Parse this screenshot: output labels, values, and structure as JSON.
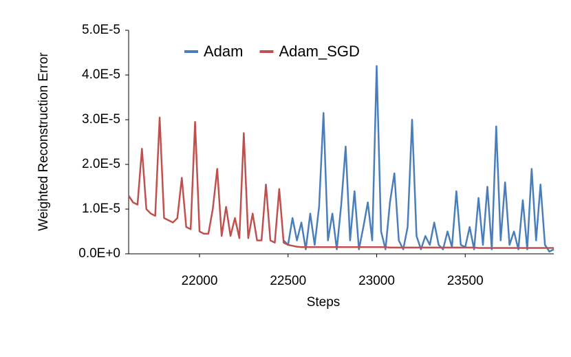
{
  "chart_data": {
    "type": "line",
    "x_label": "Steps",
    "y_label": "Weighted Reconstruction Error",
    "x": [
      21600,
      21625,
      21650,
      21675,
      21700,
      21725,
      21750,
      21775,
      21800,
      21825,
      21850,
      21875,
      21900,
      21925,
      21950,
      21975,
      22000,
      22025,
      22050,
      22075,
      22100,
      22125,
      22150,
      22175,
      22200,
      22225,
      22250,
      22275,
      22300,
      22325,
      22350,
      22375,
      22400,
      22425,
      22450,
      22475,
      22500,
      22525,
      22550,
      22575,
      22600,
      22625,
      22650,
      22675,
      22700,
      22725,
      22750,
      22775,
      22800,
      22825,
      22850,
      22875,
      22900,
      22925,
      22950,
      22975,
      23000,
      23025,
      23050,
      23075,
      23100,
      23125,
      23150,
      23175,
      23200,
      23225,
      23250,
      23275,
      23300,
      23325,
      23350,
      23375,
      23400,
      23425,
      23450,
      23475,
      23500,
      23525,
      23550,
      23575,
      23600,
      23625,
      23650,
      23675,
      23700,
      23725,
      23750,
      23775,
      23800,
      23825,
      23850,
      23875,
      23900,
      23925,
      23950,
      23975,
      24000
    ],
    "series": [
      {
        "name": "Adam",
        "color": "#4a7ebb",
        "values": [
          null,
          null,
          null,
          null,
          null,
          null,
          null,
          null,
          null,
          null,
          null,
          null,
          null,
          null,
          null,
          null,
          null,
          null,
          null,
          null,
          null,
          null,
          null,
          null,
          null,
          null,
          null,
          null,
          null,
          null,
          null,
          null,
          null,
          null,
          null,
          3e-06,
          2e-06,
          8e-06,
          3e-06,
          7e-06,
          1e-06,
          9e-06,
          2e-06,
          1.05e-05,
          3.15e-05,
          3e-06,
          9e-06,
          1e-06,
          1.1e-05,
          2.4e-05,
          3e-06,
          1.4e-05,
          1e-06,
          6e-06,
          1.15e-05,
          3e-06,
          4.2e-05,
          5e-06,
          1e-06,
          1.15e-05,
          1.8e-05,
          3e-06,
          1e-06,
          6e-06,
          3e-05,
          4e-06,
          1e-06,
          4e-06,
          2e-06,
          7e-06,
          2e-06,
          1e-06,
          5e-06,
          1.5e-06,
          1.4e-05,
          2e-06,
          1.5e-06,
          6e-06,
          1e-06,
          1.25e-05,
          2e-06,
          1.5e-05,
          1e-06,
          2.85e-05,
          3e-06,
          1.6e-05,
          2e-06,
          5e-06,
          1e-06,
          1.2e-05,
          1e-06,
          1.9e-05,
          3e-06,
          1.55e-05,
          2e-06,
          5e-07,
          1e-06
        ]
      },
      {
        "name": "Adam_SGD",
        "color": "#c0504d",
        "values": [
          1.3e-05,
          1.15e-05,
          1.1e-05,
          2.35e-05,
          1e-05,
          9e-06,
          8.5e-06,
          3.05e-05,
          8e-06,
          7.5e-06,
          7e-06,
          8e-06,
          1.7e-05,
          6e-06,
          5.5e-06,
          2.95e-05,
          5e-06,
          4.5e-06,
          4.5e-06,
          1e-05,
          1.9e-05,
          4e-06,
          1.05e-05,
          4e-06,
          8e-06,
          3.5e-06,
          2.7e-05,
          3.5e-06,
          9e-06,
          3e-06,
          3e-06,
          1.55e-05,
          3e-06,
          2.5e-06,
          1.45e-05,
          2.5e-06,
          2e-06,
          1.8e-06,
          1.6e-06,
          1.5e-06,
          1.5e-06,
          1.5e-06,
          1.5e-06,
          1.5e-06,
          1.5e-06,
          1.5e-06,
          1.5e-06,
          1.5e-06,
          1.5e-06,
          1.5e-06,
          1.5e-06,
          1.5e-06,
          1.5e-06,
          1.5e-06,
          1.5e-06,
          1.5e-06,
          1.5e-06,
          1.5e-06,
          1.5e-06,
          1.4e-06,
          1.4e-06,
          1.4e-06,
          1.4e-06,
          1.4e-06,
          1.4e-06,
          1.4e-06,
          1.4e-06,
          1.4e-06,
          1.4e-06,
          1.4e-06,
          1.4e-06,
          1.4e-06,
          1.4e-06,
          1.4e-06,
          1.4e-06,
          1.4e-06,
          1.4e-06,
          1.4e-06,
          1.4e-06,
          1.3e-06,
          1.3e-06,
          1.3e-06,
          1.3e-06,
          1.3e-06,
          1.3e-06,
          1.3e-06,
          1.3e-06,
          1.3e-06,
          1.3e-06,
          1.3e-06,
          1.3e-06,
          1.3e-06,
          1.3e-06,
          1.3e-06,
          1.3e-06,
          1.3e-06,
          1.3e-06
        ]
      }
    ],
    "xlim": [
      21600,
      24000
    ],
    "xticks": [
      22000,
      22500,
      23000,
      23500
    ],
    "ylim": [
      0,
      5e-05
    ],
    "yticks": [
      {
        "value": 0,
        "label": "0.0E+0"
      },
      {
        "value": 1e-05,
        "label": "1.0E-5"
      },
      {
        "value": 2e-05,
        "label": "2.0E-5"
      },
      {
        "value": 3e-05,
        "label": "3.0E-5"
      },
      {
        "value": 4e-05,
        "label": "4.0E-5"
      },
      {
        "value": 5e-05,
        "label": "5.0E-5"
      }
    ],
    "grid": false,
    "legend": "top"
  }
}
